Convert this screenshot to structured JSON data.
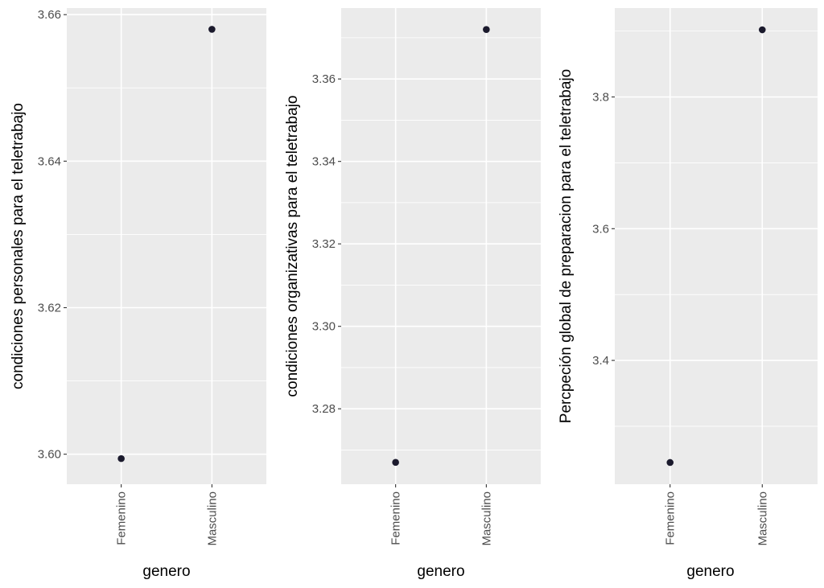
{
  "chart_data": [
    {
      "type": "scatter",
      "categories": [
        "Femenino",
        "Masculino"
      ],
      "values": [
        3.5994,
        3.658
      ],
      "xlabel": "genero",
      "ylabel": "condiciones personales para el teletrabajo",
      "ylim": [
        3.5959,
        3.6609
      ],
      "yticks": [
        3.6,
        3.62,
        3.64,
        3.66
      ],
      "ytick_labels": [
        "3.60",
        "3.62",
        "3.64",
        "3.66"
      ],
      "grid": true
    },
    {
      "type": "scatter",
      "categories": [
        "Femenino",
        "Masculino"
      ],
      "values": [
        3.267,
        3.372
      ],
      "xlabel": "genero",
      "ylabel": "condiciones organizativas para el teletrabajo",
      "ylim": [
        3.2617,
        3.3772
      ],
      "yticks": [
        3.28,
        3.3,
        3.32,
        3.34,
        3.36
      ],
      "ytick_labels": [
        "3.28",
        "3.30",
        "3.32",
        "3.34",
        "3.36"
      ],
      "grid": true
    },
    {
      "type": "scatter",
      "categories": [
        "Femenino",
        "Masculino"
      ],
      "values": [
        3.245,
        3.902
      ],
      "xlabel": "genero",
      "ylabel": "Percpeción global de preparacion para el teletrabajo",
      "ylim": [
        3.212,
        3.935
      ],
      "yticks": [
        3.4,
        3.6,
        3.8
      ],
      "ytick_labels": [
        "3.4",
        "3.6",
        "3.8"
      ],
      "grid": true
    }
  ]
}
